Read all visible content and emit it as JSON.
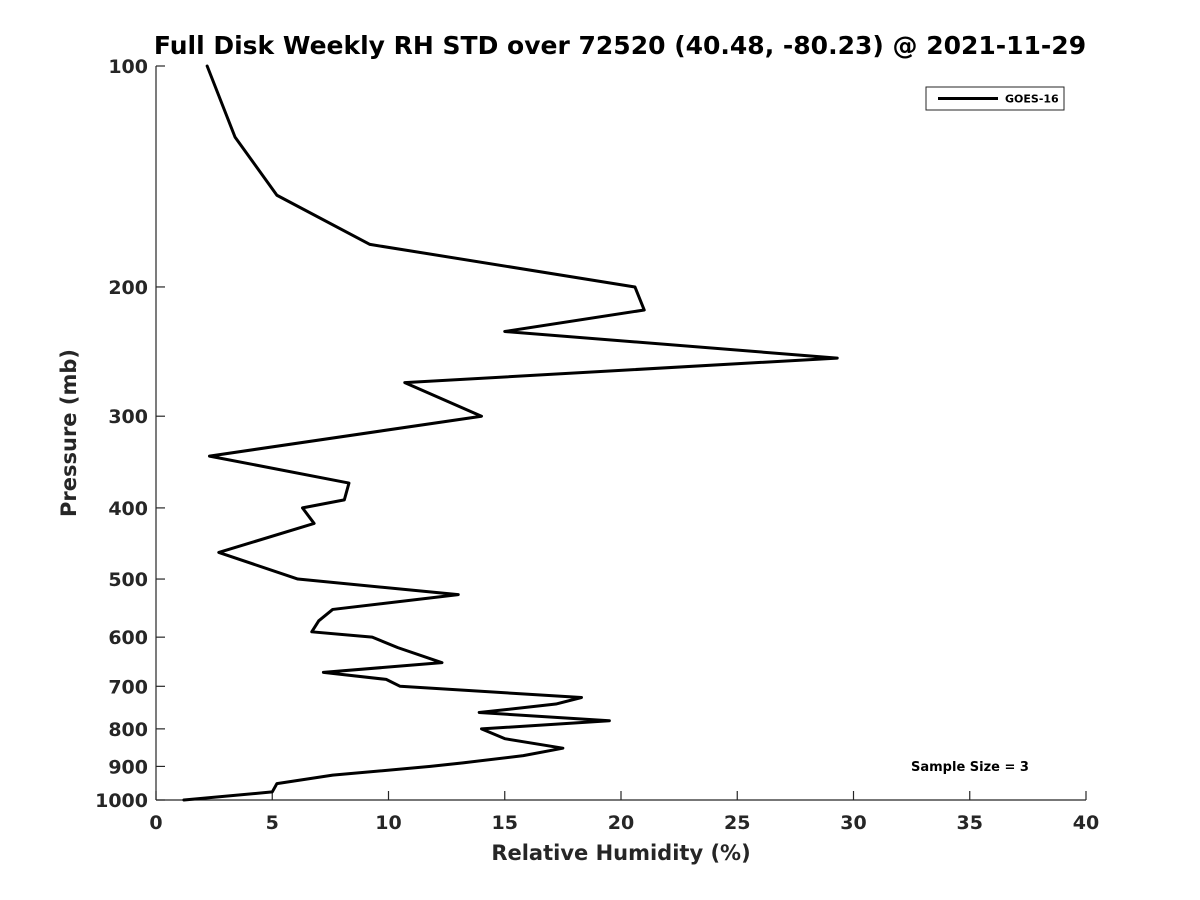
{
  "chart_data": {
    "type": "line",
    "title": "Full Disk Weekly RH STD over 72520 (40.48, -80.23) @ 2021-11-29",
    "xlabel": "Relative Humidity (%)",
    "ylabel": "Pressure (mb)",
    "xlim": [
      0,
      40
    ],
    "ylim": [
      100,
      1000
    ],
    "yscale": "log",
    "y_reversed": true,
    "grid": false,
    "legend_position": "top-right",
    "xticks": [
      0,
      5,
      10,
      15,
      20,
      25,
      30,
      35,
      40
    ],
    "xtick_labels": [
      "0",
      "5",
      "10",
      "15",
      "20",
      "25",
      "30",
      "35",
      "40"
    ],
    "yticks": [
      100,
      200,
      300,
      400,
      500,
      600,
      700,
      800,
      900,
      1000
    ],
    "ytick_labels": [
      "100",
      "200",
      "300",
      "400",
      "500",
      "600",
      "700",
      "800",
      "900",
      "1000"
    ],
    "series": [
      {
        "name": "GOES-16",
        "color": "#000000",
        "x": [
          2.2,
          3.4,
          5.2,
          9.2,
          20.6,
          21.0,
          15.0,
          29.3,
          10.7,
          14.0,
          2.3,
          8.3,
          8.1,
          6.3,
          6.8,
          2.7,
          6.1,
          13.0,
          7.6,
          7.0,
          6.7,
          9.3,
          10.4,
          12.3,
          7.2,
          9.9,
          10.5,
          18.3,
          17.2,
          13.9,
          19.5,
          14.0,
          15.0,
          17.5,
          15.8,
          13.2,
          11.8,
          7.6,
          5.2,
          5.0,
          1.2
        ],
        "y": [
          100,
          125,
          150,
          175,
          200,
          215,
          230,
          250,
          270,
          300,
          340,
          370,
          390,
          400,
          420,
          460,
          500,
          525,
          550,
          570,
          590,
          600,
          620,
          650,
          670,
          685,
          700,
          725,
          740,
          760,
          780,
          800,
          825,
          850,
          870,
          890,
          900,
          925,
          950,
          975,
          1000
        ]
      }
    ],
    "legend": [
      "GOES-16"
    ],
    "annotations": [
      "Sample Size = 3"
    ]
  }
}
